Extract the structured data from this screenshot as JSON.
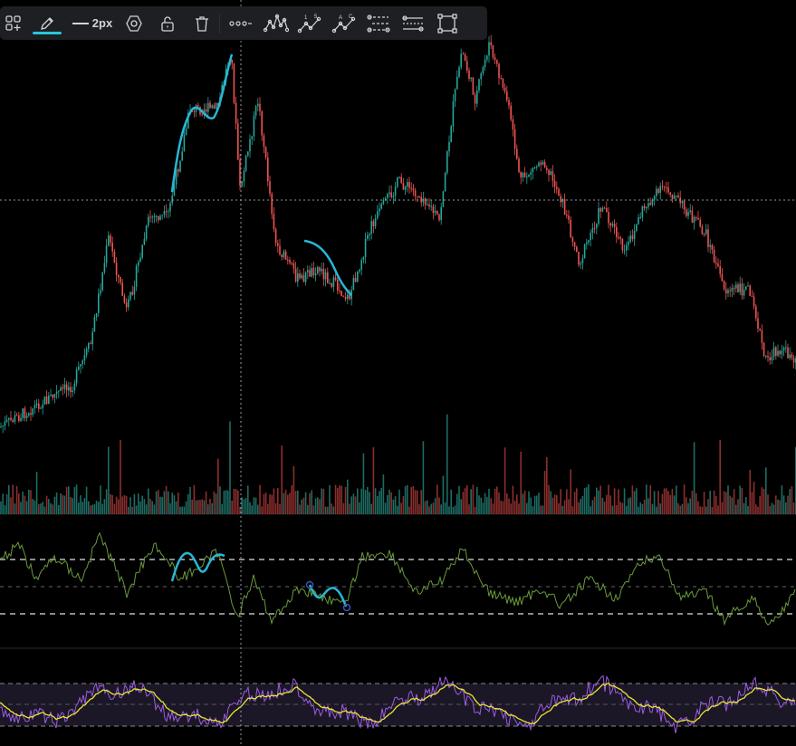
{
  "toolbar": {
    "line_width_label": "2px",
    "accent_color": "#26c6da",
    "tools": [
      {
        "name": "add-widget-icon"
      },
      {
        "name": "pencil-icon"
      },
      {
        "name": "line-width-selector"
      },
      {
        "name": "settings-hexagon-icon"
      },
      {
        "name": "lock-icon"
      },
      {
        "name": "trash-icon"
      },
      {
        "name": "more-icon"
      },
      {
        "name": "elliott-wave-icon"
      },
      {
        "name": "numbered-wave-icon"
      },
      {
        "name": "abc-wave-icon"
      },
      {
        "name": "pattern-icon"
      },
      {
        "name": "parallel-lines-icon"
      },
      {
        "name": "rectangle-tool-icon"
      }
    ]
  },
  "colors": {
    "up": "#26a69a",
    "down": "#ef5350",
    "crosshair": "#9598a1",
    "oscillator_line": "#6a9a3a",
    "rsi_line": "#9c5ce6",
    "rsi_signal": "#e6e633",
    "rsi_band": "#1b1726",
    "drawing": "#29b6d6"
  },
  "indicators": {
    "oscillator_levels": [
      "overbought",
      "mid",
      "oversold"
    ],
    "rsi_levels": [
      "upper",
      "mid",
      "lower"
    ]
  }
}
